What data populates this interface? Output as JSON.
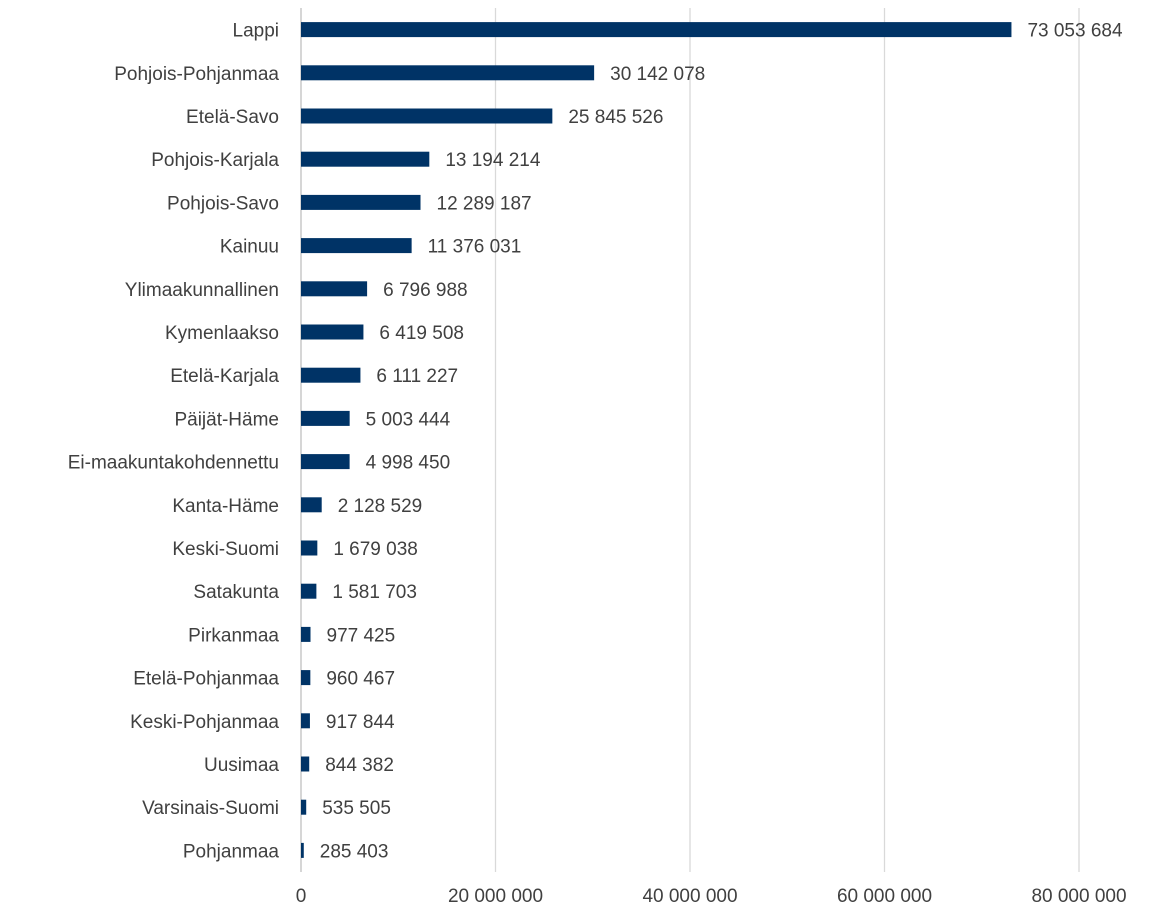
{
  "chart_data": {
    "type": "bar",
    "orientation": "horizontal",
    "title": "",
    "xlabel": "",
    "ylabel": "",
    "categories": [
      "Lappi",
      "Pohjois-Pohjanmaa",
      "Etelä-Savo",
      "Pohjois-Karjala",
      "Pohjois-Savo",
      "Kainuu",
      "Ylimaakunnallinen",
      "Kymenlaakso",
      "Etelä-Karjala",
      "Päijät-Häme",
      "Ei-maakuntakohdennettu",
      "Kanta-Häme",
      "Keski-Suomi",
      "Satakunta",
      "Pirkanmaa",
      "Etelä-Pohjanmaa",
      "Keski-Pohjanmaa",
      "Uusimaa",
      "Varsinais-Suomi",
      "Pohjanmaa"
    ],
    "values": [
      73053684,
      30142078,
      25845526,
      13194214,
      12289187,
      11376031,
      6796988,
      6419508,
      6111227,
      5003444,
      4998450,
      2128529,
      1679038,
      1581703,
      977425,
      960467,
      917844,
      844382,
      535505,
      285403
    ],
    "data_labels": [
      "73 053 684",
      "30 142 078",
      "25 845 526",
      "13 194 214",
      "12 289 187",
      "11 376 031",
      "6 796 988",
      "6 419 508",
      "6 111 227",
      "5 003 444",
      "4 998 450",
      "2 128 529",
      "1 679 038",
      "1 581 703",
      "977 425",
      "960 467",
      "917 844",
      "844 382",
      "535 505",
      "285 403"
    ],
    "xlim": [
      0,
      80000000
    ],
    "x_ticks": [
      0,
      20000000,
      40000000,
      60000000,
      80000000
    ],
    "x_tick_labels": [
      "0",
      "20 000 000",
      "40 000 000",
      "60 000 000",
      "80 000 000"
    ],
    "grid": "vertical",
    "legend": "none",
    "bar_color": "#003366"
  }
}
